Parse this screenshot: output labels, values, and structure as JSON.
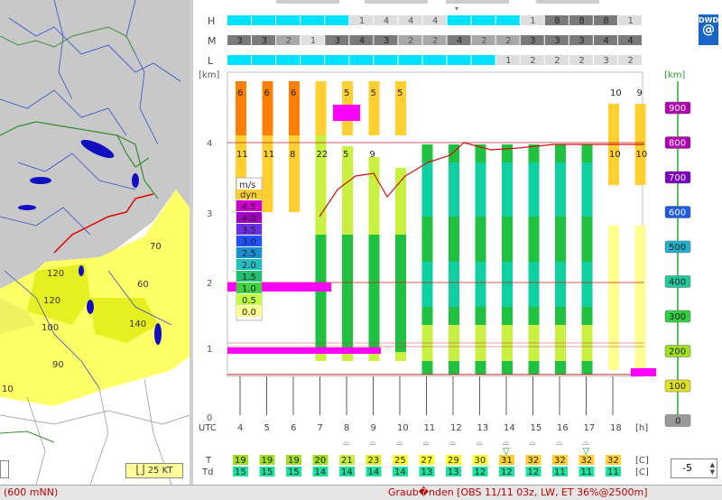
{
  "map": {
    "scale_label": "25 KT",
    "region_labels": [
      "70",
      "60",
      "120",
      "120",
      "140",
      "100",
      "90",
      "10"
    ]
  },
  "cloud_rows": {
    "labels": [
      "H",
      "M",
      "L"
    ],
    "H": [
      "",
      "",
      "",
      "",
      "",
      "1",
      "4",
      "4",
      "4",
      "",
      "",
      "",
      "1",
      "8",
      "8",
      "8",
      "1"
    ],
    "M": [
      "3",
      "3",
      "2",
      "1",
      "3",
      "4",
      "3",
      "2",
      "2",
      "4",
      "2",
      "2",
      "3",
      "3",
      "3",
      "4",
      "4"
    ],
    "L": [
      "",
      "",
      "",
      "",
      "",
      "",
      "",
      "",
      "",
      "",
      "",
      "1",
      "2",
      "2",
      "2",
      "3",
      "2"
    ]
  },
  "logo": "DWD",
  "height_axis": {
    "unit": "[km]",
    "ticks": [
      "4",
      "3",
      "2",
      "1",
      "0"
    ]
  },
  "right_scale": {
    "unit": "[km]",
    "ticks": [
      "900",
      "800",
      "700",
      "600",
      "500",
      "400",
      "300",
      "200",
      "100",
      "0"
    ],
    "colors": [
      "#b000b0",
      "#b000b0",
      "#7a00c0",
      "#1e5ae0",
      "#20b0d0",
      "#20c8a0",
      "#30d040",
      "#a0e020",
      "#e0e020",
      "#999999"
    ]
  },
  "legend": {
    "unit1": "m/s",
    "unit2": "dyn",
    "values": [
      "4.5",
      "4.0",
      "3.5",
      "3.0",
      "2.5",
      "2.0",
      "1.5",
      "1.0",
      "0.5",
      "0.0"
    ],
    "colors": [
      "#d000d0",
      "#a000c0",
      "#6a30e0",
      "#2050ff",
      "#1890d0",
      "#20c0c0",
      "#20c070",
      "#40d040",
      "#c0ff40",
      "#ffff90"
    ]
  },
  "chart_data": {
    "type": "heatmap",
    "x": [
      "4",
      "5",
      "6",
      "7",
      "8",
      "9",
      "10",
      "11",
      "12",
      "13",
      "14",
      "15",
      "16",
      "17",
      "18"
    ],
    "x_label": "UTC",
    "x_unit": "[h]",
    "upper_numbers": [
      "6",
      "6",
      "6",
      "",
      "5",
      "5",
      "5",
      "",
      "",
      "",
      "",
      "",
      "",
      "",
      "10",
      "9"
    ],
    "mid_numbers": [
      "11",
      "11",
      "8",
      "22",
      "5",
      "9",
      "",
      "",
      "",
      "",
      "",
      "",
      "",
      "",
      "10",
      "10"
    ],
    "T_label": "T",
    "T_unit": "[C]",
    "T": [
      "19",
      "19",
      "19",
      "20",
      "21",
      "23",
      "25",
      "27",
      "29",
      "30",
      "31",
      "32",
      "32",
      "32",
      "32"
    ],
    "T_colors": [
      "#a0e020",
      "#a0e020",
      "#a0e020",
      "#a0e020",
      "#c8f040",
      "#e0f020",
      "#ffff30",
      "#ffff30",
      "#ffff30",
      "#ffff30",
      "#ffd030",
      "#ffd030",
      "#ffd030",
      "#ffd030",
      "#ffd030"
    ],
    "Td_label": "Td",
    "Td_unit": "[C]",
    "Td": [
      "15",
      "15",
      "15",
      "14",
      "14",
      "14",
      "14",
      "13",
      "13",
      "12",
      "12",
      "12",
      "11",
      "11",
      "11"
    ],
    "Td_color": "#20e0a0"
  },
  "spinner": {
    "value": "-5"
  },
  "status": {
    "left": "(600 mNN)",
    "right": "Graub�nden [OBS 11/11 03z, LW, ET  36%@2500m]"
  }
}
